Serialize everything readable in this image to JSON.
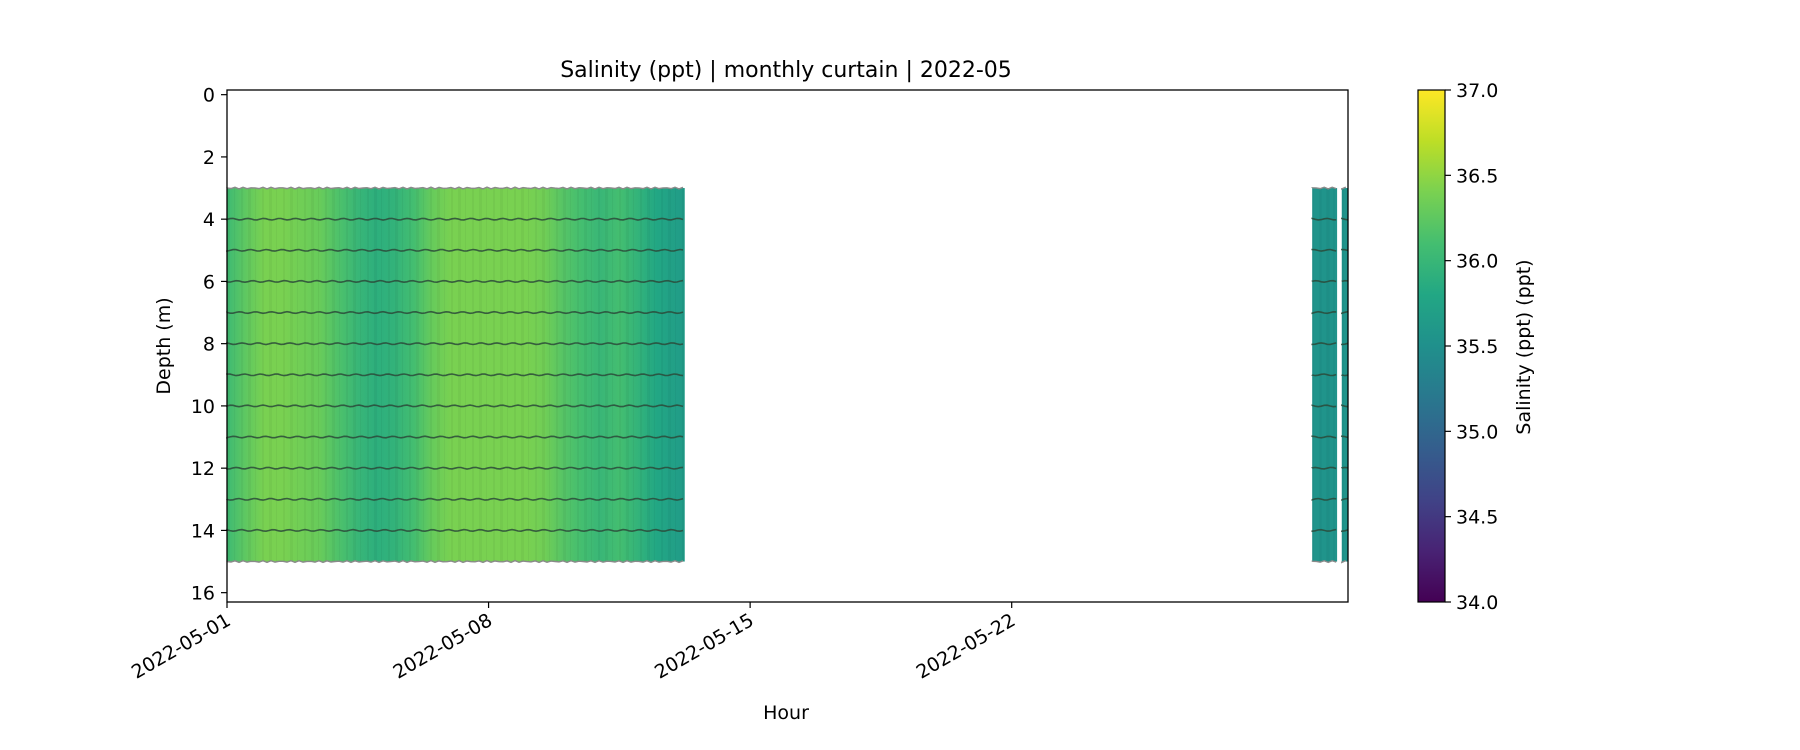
{
  "chart_data": {
    "type": "heatmap",
    "title": "Salinity (ppt) | monthly curtain | 2022-05",
    "xlabel": "Hour",
    "ylabel": "Depth (m)",
    "x_range": [
      "2022-05-01",
      "2022-05-31"
    ],
    "x_ticks": [
      "2022-05-01",
      "2022-05-08",
      "2022-05-15",
      "2022-05-22"
    ],
    "y_range": [
      16.3,
      -0.15
    ],
    "y_inverted": true,
    "y_ticks": [
      0,
      2,
      4,
      6,
      8,
      10,
      12,
      14,
      16
    ],
    "colorbar": {
      "label": "Salinity (ppt) (ppt)",
      "colormap": "viridis",
      "range": [
        34.0,
        37.0
      ],
      "ticks": [
        "34.0",
        "34.5",
        "35.0",
        "35.5",
        "36.0",
        "36.5",
        "37.0"
      ]
    },
    "sensor_depths": [
      4,
      5,
      6,
      7,
      8,
      9,
      10,
      11,
      12,
      13,
      14
    ],
    "profile_top_depth": 3.0,
    "profile_bottom_depth": 15.0,
    "data_segments": [
      {
        "start": "2022-05-01",
        "end": "2022-05-13T06:00"
      },
      {
        "start": "2022-05-30T01:00",
        "end": "2022-05-30T17:00"
      },
      {
        "start": "2022-05-30T20:00",
        "end": "2022-05-31"
      }
    ],
    "salinity_by_time": [
      {
        "t": "2022-05-01T00:00",
        "v": 36.05
      },
      {
        "t": "2022-05-01T12:00",
        "v": 36.25
      },
      {
        "t": "2022-05-02T00:00",
        "v": 36.4
      },
      {
        "t": "2022-05-02T12:00",
        "v": 36.4
      },
      {
        "t": "2022-05-03T00:00",
        "v": 36.35
      },
      {
        "t": "2022-05-03T12:00",
        "v": 36.3
      },
      {
        "t": "2022-05-04T00:00",
        "v": 36.15
      },
      {
        "t": "2022-05-04T12:00",
        "v": 36.0
      },
      {
        "t": "2022-05-05T00:00",
        "v": 35.9
      },
      {
        "t": "2022-05-05T12:00",
        "v": 35.95
      },
      {
        "t": "2022-05-06T00:00",
        "v": 36.1
      },
      {
        "t": "2022-05-06T12:00",
        "v": 36.3
      },
      {
        "t": "2022-05-07T00:00",
        "v": 36.4
      },
      {
        "t": "2022-05-08T00:00",
        "v": 36.4
      },
      {
        "t": "2022-05-09T00:00",
        "v": 36.4
      },
      {
        "t": "2022-05-09T12:00",
        "v": 36.35
      },
      {
        "t": "2022-05-10T00:00",
        "v": 36.2
      },
      {
        "t": "2022-05-10T12:00",
        "v": 36.1
      },
      {
        "t": "2022-05-11T00:00",
        "v": 36.0
      },
      {
        "t": "2022-05-11T12:00",
        "v": 36.1
      },
      {
        "t": "2022-05-12T00:00",
        "v": 35.95
      },
      {
        "t": "2022-05-12T12:00",
        "v": 35.8
      },
      {
        "t": "2022-05-13T06:00",
        "v": 35.65
      },
      {
        "t": "2022-05-30T01:00",
        "v": 35.55
      },
      {
        "t": "2022-05-31T00:00",
        "v": 35.55
      }
    ],
    "grid": false
  }
}
